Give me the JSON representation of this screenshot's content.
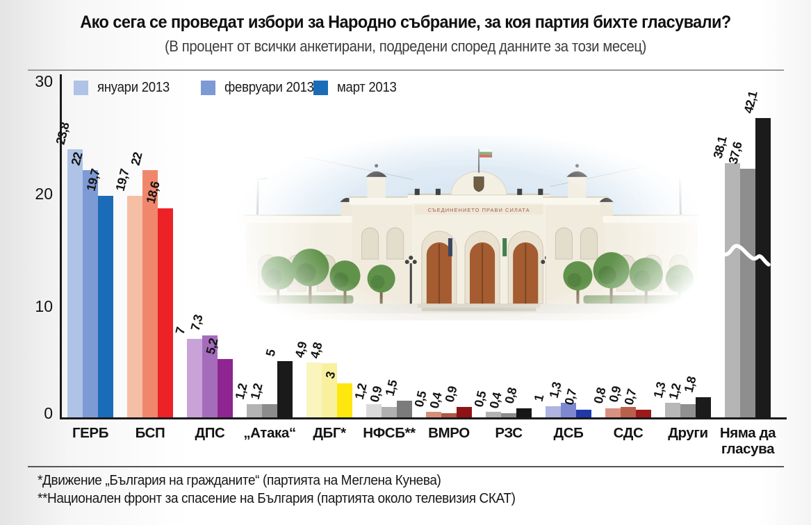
{
  "title": "Ако сега се проведат избори за Народно събрание, за коя партия бихте гласували?",
  "subtitle": "(В процент от всички анкетирани, подредени според данните за този месец)",
  "legend": {
    "items": [
      {
        "label": "януари 2013",
        "color": "#aec3e6"
      },
      {
        "label": "февруари 2013",
        "color": "#7e9ad4"
      },
      {
        "label": "март 2013",
        "color": "#1a6cb8"
      }
    ]
  },
  "building": {
    "caption": "Сграда на Народното събрание",
    "inscription": "СЪЕДИНЕНИЕТО ПРАВИ СИЛАТА"
  },
  "chart_data": {
    "type": "bar",
    "title": "Ако сега се проведат избори за Народно събрание, за коя партия бихте гласували?",
    "subtitle": "(В процент от всички анкетирани, подредени според данните за този месец)",
    "categories": [
      "ГЕРБ",
      "БСП",
      "ДПС",
      "„Атака“",
      "ДБГ*",
      "НФСБ**",
      "ВМРО",
      "РЗС",
      "ДСБ",
      "СДС",
      "Други",
      "Няма да гласува"
    ],
    "series": [
      {
        "name": "януари 2013",
        "values": [
          23.8,
          19.7,
          7,
          1.2,
          4.9,
          1.2,
          0.5,
          0.5,
          1,
          0.8,
          1.3,
          38.1
        ]
      },
      {
        "name": "февруари 2013",
        "values": [
          22,
          22,
          7.3,
          1.2,
          4.8,
          0.9,
          0.4,
          0.4,
          1.3,
          0.9,
          1.2,
          37.6
        ]
      },
      {
        "name": "март 2013",
        "values": [
          19.7,
          18.6,
          5.2,
          5,
          3,
          1.5,
          0.9,
          0.8,
          0.7,
          0.7,
          1.8,
          42.1
        ]
      }
    ],
    "bar_colors": [
      [
        "#aec3e6",
        "#7e9ad4",
        "#1a6cb8"
      ],
      [
        "#f5bfa6",
        "#f0876c",
        "#ec2227"
      ],
      [
        "#c9a2d8",
        "#a56cbc",
        "#8e2590"
      ],
      [
        "#b3b3b3",
        "#8c8c8c",
        "#1a1a1a"
      ],
      [
        "#f9f5bd",
        "#f8f09d",
        "#fee70e"
      ],
      [
        "#dadada",
        "#b0b0b0",
        "#7b7b7b"
      ],
      [
        "#d69079",
        "#b25743",
        "#8e1315"
      ],
      [
        "#b3b3b3",
        "#8c8c8c",
        "#161616"
      ],
      [
        "#b0b4e0",
        "#7e88d0",
        "#2138a8"
      ],
      [
        "#d89180",
        "#b9604a",
        "#9c1a1a"
      ],
      [
        "#b8b8b8",
        "#909090",
        "#1b1b1b"
      ],
      [
        "#b5b5b5",
        "#8e8e8e",
        "#1b1b1b"
      ]
    ],
    "ylim": [
      0,
      30
    ],
    "ytick_labels": [
      "30",
      "20",
      "10",
      "0"
    ],
    "grid": false,
    "legend_position": "top-left",
    "value_label_format": "decimal-comma",
    "scale_break": {
      "applies_to": "Няма да гласува",
      "note": "стойностите над 30 са пресечени с вълнообразна линия"
    }
  },
  "footnotes": [
    "*Движение „България на гражданите“ (партията на Меглена Кунева)",
    "**Национален фронт за спасение на България (партията около телевизия СКАТ)"
  ]
}
